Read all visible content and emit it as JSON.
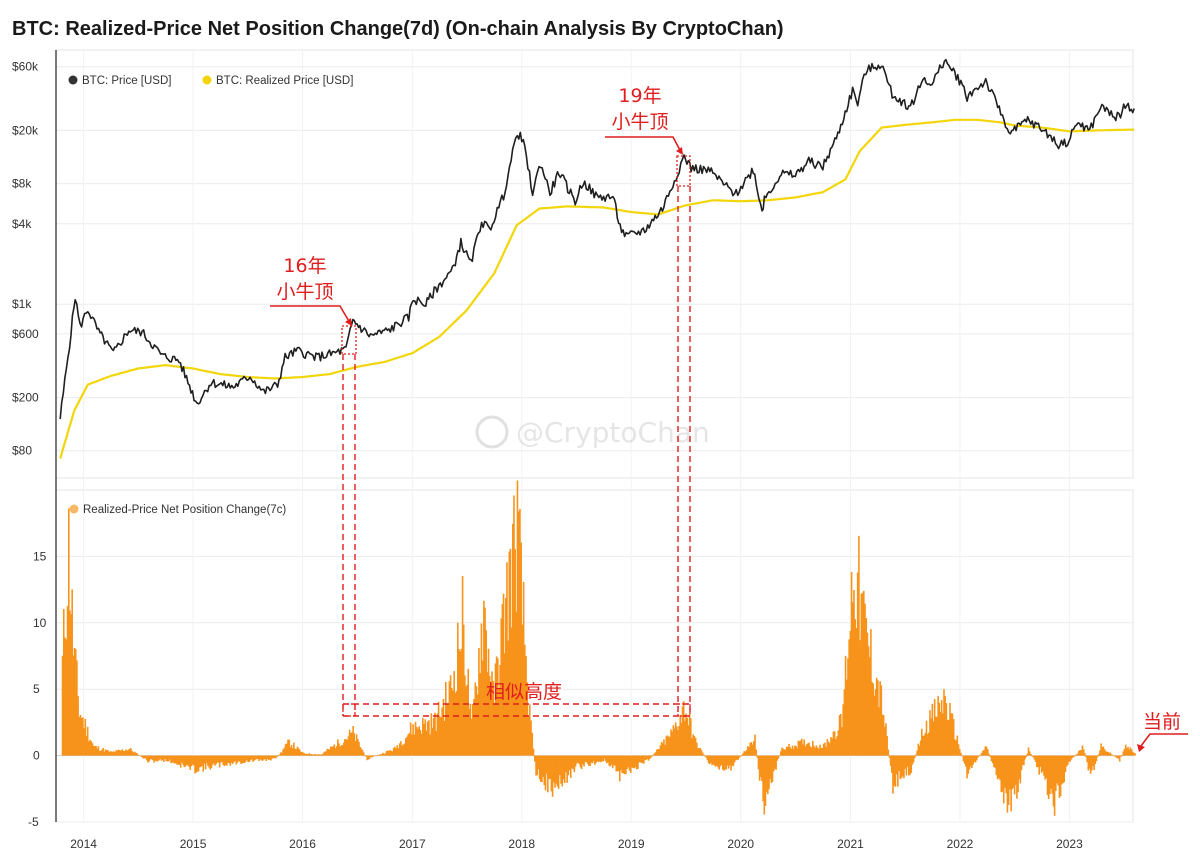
{
  "title": "BTC: Realized-Price Net Position Change(7d) (On-chain Analysis By CryptoChan)",
  "watermark": "@CryptoChan",
  "colors": {
    "price": "#1f1f1f",
    "realized": "#f2d60a",
    "npc": "#f7931a",
    "annotation": "#e11d1d",
    "legend_price_dot": "#333333",
    "legend_realized_dot": "#f2d60a",
    "legend_npc_dot": "#f5b867"
  },
  "chart_data": [
    {
      "type": "line",
      "y_scale": "log",
      "ylim": [
        50,
        80000
      ],
      "xlim": [
        "2013-10",
        "2023-08"
      ],
      "y_ticks": [
        {
          "label": "$60k",
          "value": 60000
        },
        {
          "label": "$20k",
          "value": 20000
        },
        {
          "label": "$8k",
          "value": 8000
        },
        {
          "label": "$4k",
          "value": 4000
        },
        {
          "label": "$1k",
          "value": 1000
        },
        {
          "label": "$600",
          "value": 600
        },
        {
          "label": "$200",
          "value": 200
        },
        {
          "label": "$80",
          "value": 80
        }
      ],
      "grid": true,
      "legend_position": "top-left",
      "series": [
        {
          "name": "BTC: Price [USD]",
          "points": [
            [
              "2013-10-15",
              140
            ],
            [
              "2013-11-20",
              620
            ],
            [
              "2013-12-04",
              1150
            ],
            [
              "2013-12-20",
              680
            ],
            [
              "2014-01-15",
              920
            ],
            [
              "2014-02-20",
              620
            ],
            [
              "2014-04-10",
              430
            ],
            [
              "2014-06-01",
              640
            ],
            [
              "2014-07-15",
              620
            ],
            [
              "2014-09-20",
              410
            ],
            [
              "2014-11-15",
              380
            ],
            [
              "2015-01-14",
              180
            ],
            [
              "2015-03-01",
              260
            ],
            [
              "2015-05-15",
              240
            ],
            [
              "2015-07-10",
              290
            ],
            [
              "2015-08-25",
              220
            ],
            [
              "2015-10-10",
              250
            ],
            [
              "2015-11-04",
              400
            ],
            [
              "2015-12-15",
              450
            ],
            [
              "2016-02-15",
              400
            ],
            [
              "2016-04-15",
              430
            ],
            [
              "2016-05-25",
              460
            ],
            [
              "2016-06-17",
              760
            ],
            [
              "2016-07-15",
              660
            ],
            [
              "2016-08-15",
              580
            ],
            [
              "2016-10-15",
              640
            ],
            [
              "2016-12-20",
              800
            ],
            [
              "2017-01-04",
              1100
            ],
            [
              "2017-02-15",
              1000
            ],
            [
              "2017-03-15",
              1250
            ],
            [
              "2017-05-15",
              1800
            ],
            [
              "2017-06-12",
              2900
            ],
            [
              "2017-07-15",
              2000
            ],
            [
              "2017-08-20",
              4200
            ],
            [
              "2017-09-15",
              3600
            ],
            [
              "2017-11-01",
              6500
            ],
            [
              "2017-12-17",
              19500
            ],
            [
              "2018-01-06",
              16500
            ],
            [
              "2018-02-06",
              6900
            ],
            [
              "2018-03-05",
              11400
            ],
            [
              "2018-04-05",
              6800
            ],
            [
              "2018-05-05",
              9800
            ],
            [
              "2018-06-28",
              5900
            ],
            [
              "2018-07-25",
              8300
            ],
            [
              "2018-09-10",
              6300
            ],
            [
              "2018-11-01",
              6400
            ],
            [
              "2018-11-25",
              3800
            ],
            [
              "2018-12-15",
              3200
            ],
            [
              "2019-02-15",
              3600
            ],
            [
              "2019-04-15",
              5200
            ],
            [
              "2019-05-25",
              8500
            ],
            [
              "2019-06-26",
              12800
            ],
            [
              "2019-07-20",
              10500
            ],
            [
              "2019-09-20",
              10000
            ],
            [
              "2019-11-25",
              7200
            ],
            [
              "2019-12-17",
              6700
            ],
            [
              "2020-02-12",
              10300
            ],
            [
              "2020-03-12",
              5000
            ],
            [
              "2020-03-20",
              6200
            ],
            [
              "2020-05-15",
              9500
            ],
            [
              "2020-07-01",
              9200
            ],
            [
              "2020-08-15",
              11800
            ],
            [
              "2020-10-01",
              10700
            ],
            [
              "2020-11-20",
              18600
            ],
            [
              "2021-01-08",
              40000
            ],
            [
              "2021-01-25",
              32000
            ],
            [
              "2021-02-21",
              56000
            ],
            [
              "2021-04-14",
              63000
            ],
            [
              "2021-05-20",
              37000
            ],
            [
              "2021-07-20",
              30000
            ],
            [
              "2021-09-05",
              51000
            ],
            [
              "2021-09-25",
              42000
            ],
            [
              "2021-11-10",
              67000
            ],
            [
              "2021-12-25",
              50000
            ],
            [
              "2022-01-25",
              36000
            ],
            [
              "2022-03-28",
              47000
            ],
            [
              "2022-05-12",
              29000
            ],
            [
              "2022-06-18",
              19000
            ],
            [
              "2022-08-15",
              24000
            ],
            [
              "2022-10-15",
              19500
            ],
            [
              "2022-11-21",
              15800
            ],
            [
              "2022-12-30",
              16500
            ],
            [
              "2023-01-25",
              23000
            ],
            [
              "2023-03-10",
              20000
            ],
            [
              "2023-04-14",
              30000
            ],
            [
              "2023-06-15",
              25000
            ],
            [
              "2023-07-01",
              30500
            ],
            [
              "2023-08-05",
              29200
            ]
          ]
        },
        {
          "name": "BTC: Realized Price [USD]",
          "points": [
            [
              "2013-10-15",
              70
            ],
            [
              "2013-12-01",
              160
            ],
            [
              "2014-01-15",
              250
            ],
            [
              "2014-04-01",
              290
            ],
            [
              "2014-07-01",
              330
            ],
            [
              "2014-10-01",
              350
            ],
            [
              "2015-01-01",
              330
            ],
            [
              "2015-04-01",
              300
            ],
            [
              "2015-07-01",
              285
            ],
            [
              "2015-10-01",
              278
            ],
            [
              "2016-01-01",
              285
            ],
            [
              "2016-04-01",
              300
            ],
            [
              "2016-07-01",
              340
            ],
            [
              "2016-10-01",
              370
            ],
            [
              "2017-01-01",
              430
            ],
            [
              "2017-04-01",
              570
            ],
            [
              "2017-07-01",
              900
            ],
            [
              "2017-10-01",
              1700
            ],
            [
              "2017-12-15",
              3900
            ],
            [
              "2018-03-01",
              5200
            ],
            [
              "2018-06-01",
              5400
            ],
            [
              "2018-10-01",
              5300
            ],
            [
              "2019-01-01",
              4900
            ],
            [
              "2019-04-01",
              4700
            ],
            [
              "2019-07-01",
              5500
            ],
            [
              "2019-10-01",
              6000
            ],
            [
              "2020-01-01",
              5900
            ],
            [
              "2020-04-01",
              6000
            ],
            [
              "2020-07-01",
              6300
            ],
            [
              "2020-10-01",
              6900
            ],
            [
              "2020-12-15",
              8600
            ],
            [
              "2021-02-01",
              14000
            ],
            [
              "2021-04-15",
              21000
            ],
            [
              "2021-07-01",
              22000
            ],
            [
              "2021-10-01",
              23000
            ],
            [
              "2021-12-15",
              24000
            ],
            [
              "2022-03-01",
              24000
            ],
            [
              "2022-05-15",
              23000
            ],
            [
              "2022-07-01",
              21800
            ],
            [
              "2022-10-01",
              21000
            ],
            [
              "2023-01-01",
              19700
            ],
            [
              "2023-04-01",
              20000
            ],
            [
              "2023-08-05",
              20300
            ]
          ]
        }
      ]
    },
    {
      "type": "bar",
      "ylim": [
        -5,
        20
      ],
      "xlim": [
        "2013-10",
        "2023-08"
      ],
      "y_ticks": [
        15,
        10,
        5,
        0,
        -5
      ],
      "x_ticks": [
        "2014",
        "2015",
        "2016",
        "2017",
        "2018",
        "2019",
        "2020",
        "2021",
        "2022",
        "2023"
      ],
      "grid": true,
      "legend_position": "top-left",
      "series": [
        {
          "name": "Realized-Price Net Position Change(7c)",
          "points": [
            [
              "2013-10-20",
              8
            ],
            [
              "2013-11-10",
              18.5
            ],
            [
              "2013-11-25",
              10
            ],
            [
              "2013-12-15",
              4
            ],
            [
              "2014-02-01",
              0.8
            ],
            [
              "2014-04-01",
              0.3
            ],
            [
              "2014-06-01",
              0.6
            ],
            [
              "2014-08-01",
              -0.5
            ],
            [
              "2014-10-01",
              -0.4
            ],
            [
              "2015-01-01",
              -1.2
            ],
            [
              "2015-04-01",
              -0.8
            ],
            [
              "2015-07-01",
              -0.5
            ],
            [
              "2015-10-01",
              -0.3
            ],
            [
              "2015-11-15",
              1.2
            ],
            [
              "2016-01-01",
              0.2
            ],
            [
              "2016-03-01",
              0.1
            ],
            [
              "2016-06-15",
              2.0
            ],
            [
              "2016-08-01",
              -0.3
            ],
            [
              "2016-11-01",
              0.6
            ],
            [
              "2017-01-01",
              2.5
            ],
            [
              "2017-03-15",
              3.0
            ],
            [
              "2017-05-10",
              6.0
            ],
            [
              "2017-06-15",
              12.0
            ],
            [
              "2017-07-15",
              2.5
            ],
            [
              "2017-08-25",
              13.0
            ],
            [
              "2017-09-25",
              5.0
            ],
            [
              "2017-11-10",
              14.0
            ],
            [
              "2017-12-15",
              20.0
            ],
            [
              "2018-01-25",
              3.5
            ],
            [
              "2018-02-15",
              -1.5
            ],
            [
              "2018-04-15",
              -3.0
            ],
            [
              "2018-07-01",
              -1.0
            ],
            [
              "2018-10-01",
              -0.4
            ],
            [
              "2018-11-25",
              -1.8
            ],
            [
              "2019-01-01",
              -1.2
            ],
            [
              "2019-03-01",
              -0.3
            ],
            [
              "2019-05-15",
              2.0
            ],
            [
              "2019-06-26",
              4.3
            ],
            [
              "2019-08-01",
              1.2
            ],
            [
              "2019-09-25",
              -1.0
            ],
            [
              "2019-12-01",
              -1.0
            ],
            [
              "2020-02-15",
              1.5
            ],
            [
              "2020-03-13",
              -4.3
            ],
            [
              "2020-05-15",
              0.6
            ],
            [
              "2020-08-01",
              1.2
            ],
            [
              "2020-10-01",
              0.8
            ],
            [
              "2020-12-01",
              3.0
            ],
            [
              "2021-01-10",
              17.0
            ],
            [
              "2021-02-20",
              10.5
            ],
            [
              "2021-04-15",
              4.5
            ],
            [
              "2021-05-20",
              -2.5
            ],
            [
              "2021-07-20",
              -1.2
            ],
            [
              "2021-09-01",
              2.5
            ],
            [
              "2021-11-10",
              5.0
            ],
            [
              "2022-01-22",
              -1.5
            ],
            [
              "2022-03-28",
              0.8
            ],
            [
              "2022-05-12",
              -2.5
            ],
            [
              "2022-06-18",
              -4.8
            ],
            [
              "2022-08-15",
              0.6
            ],
            [
              "2022-11-10",
              -4.0
            ],
            [
              "2023-01-01",
              -0.5
            ],
            [
              "2023-02-15",
              0.8
            ],
            [
              "2023-03-10",
              -2.0
            ],
            [
              "2023-04-14",
              0.8
            ],
            [
              "2023-06-15",
              -0.4
            ],
            [
              "2023-07-05",
              0.8
            ],
            [
              "2023-08-05",
              0.3
            ]
          ]
        }
      ]
    }
  ],
  "annotations": {
    "top_2016": {
      "line1": "16年",
      "line2": "小牛顶"
    },
    "top_2019": {
      "line1": "19年",
      "line2": "小牛顶"
    },
    "similar_height": "相似高度",
    "current": "当前"
  }
}
